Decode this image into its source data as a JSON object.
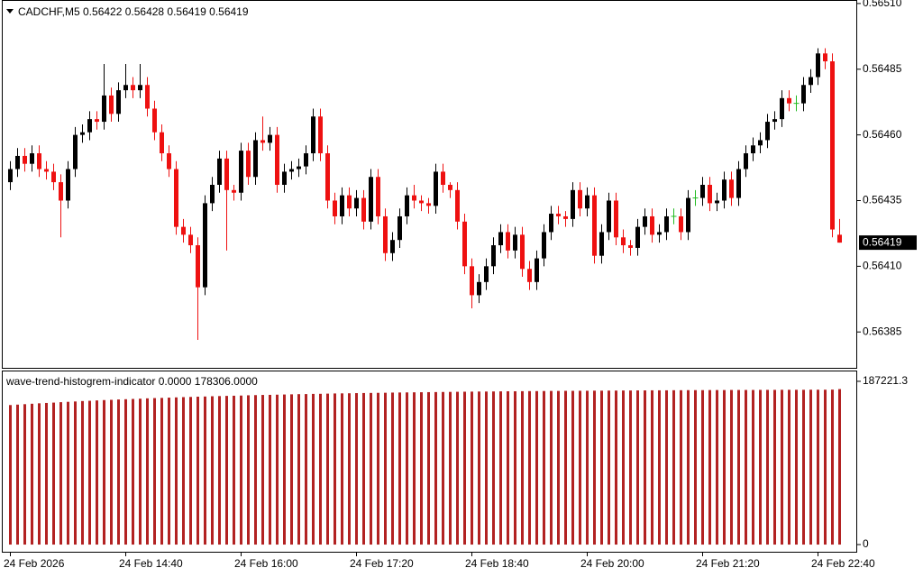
{
  "chart_data": [
    {
      "type": "candlestick",
      "title": "CADCHF,M5 0.56422 0.56428 0.56419 0.56419",
      "categories": [
        "24 Feb 2026",
        null,
        null,
        null,
        null,
        null,
        null,
        null,
        null,
        null,
        null,
        null,
        null,
        null,
        null,
        null,
        "24 Feb 14:40",
        null,
        null,
        null,
        null,
        null,
        null,
        null,
        null,
        null,
        null,
        null,
        null,
        null,
        null,
        null,
        "24 Feb 16:00",
        null,
        null,
        null,
        null,
        null,
        null,
        null,
        null,
        null,
        null,
        null,
        null,
        null,
        null,
        null,
        "24 Feb 17:20",
        null,
        null,
        null,
        null,
        null,
        null,
        null,
        null,
        null,
        null,
        null,
        null,
        null,
        null,
        null,
        "24 Feb 18:40",
        null,
        null,
        null,
        null,
        null,
        null,
        null,
        null,
        null,
        null,
        null,
        null,
        null,
        null,
        null,
        "24 Feb 20:00",
        null,
        null,
        null,
        null,
        null,
        null,
        null,
        null,
        null,
        null,
        null,
        null,
        null,
        null,
        null,
        "24 Feb 21:20",
        null,
        null,
        null,
        null,
        null,
        null,
        null,
        null,
        null,
        null,
        null,
        null,
        null,
        null,
        null,
        "24 Feb 22:40",
        null,
        null,
        null
      ],
      "open": [
        0.56442,
        0.56447,
        0.56452,
        0.56449,
        0.56453,
        0.56447,
        0.56446,
        0.56442,
        0.56435,
        0.56447,
        0.5646,
        0.56461,
        0.56466,
        0.56465,
        0.56475,
        0.56468,
        0.56477,
        0.56479,
        0.56477,
        0.56479,
        0.5647,
        0.56461,
        0.56453,
        0.56447,
        0.56425,
        0.56422,
        0.56418,
        0.56402,
        0.56434,
        0.56441,
        0.56451,
        0.56439,
        0.56438,
        0.56454,
        0.56444,
        0.56458,
        0.56457,
        0.5646,
        0.56441,
        0.56446,
        0.56447,
        0.56448,
        0.56453,
        0.56467,
        0.56453,
        0.56435,
        0.56429,
        0.56437,
        0.56432,
        0.56436,
        0.56427,
        0.56444,
        0.56429,
        0.56415,
        0.5642,
        0.56429,
        0.56437,
        0.56435,
        0.56434,
        0.56433,
        0.56446,
        0.56441,
        0.56439,
        0.56427,
        0.5641,
        0.56399,
        0.56404,
        0.5641,
        0.56418,
        0.56423,
        0.56416,
        0.56422,
        0.56409,
        0.56404,
        0.56413,
        0.56423,
        0.5643,
        0.56429,
        0.56428,
        0.56439,
        0.56432,
        0.56437,
        0.56414,
        0.56423,
        0.56435,
        0.56421,
        0.56418,
        0.56417,
        0.56425,
        0.56429,
        0.56422,
        0.56423,
        0.56429,
        0.56429,
        0.56423,
        0.56436,
        0.56436,
        0.56441,
        0.56434,
        0.56435,
        0.56443,
        0.56436,
        0.56447,
        0.56453,
        0.56456,
        0.56458,
        0.56465,
        0.56466,
        0.56474,
        0.56472,
        0.56472,
        0.56479,
        0.56482,
        0.56491,
        0.56488,
        0.56422
      ],
      "high": [
        0.5645,
        0.56455,
        0.56455,
        0.56456,
        0.56456,
        0.5645,
        0.56449,
        0.56445,
        0.5645,
        0.56463,
        0.56464,
        0.56469,
        0.56469,
        0.56487,
        0.56478,
        0.5648,
        0.56487,
        0.56482,
        0.56487,
        0.56482,
        0.56473,
        0.56464,
        0.56456,
        0.5645,
        0.56428,
        0.56425,
        0.56421,
        0.56437,
        0.56444,
        0.56454,
        0.56454,
        0.56441,
        0.56457,
        0.56457,
        0.56461,
        0.56467,
        0.56463,
        0.56463,
        0.56449,
        0.5645,
        0.56451,
        0.56456,
        0.5647,
        0.5647,
        0.56456,
        0.56438,
        0.5644,
        0.5644,
        0.56439,
        0.56439,
        0.56447,
        0.56447,
        0.56432,
        0.56423,
        0.56432,
        0.5644,
        0.56441,
        0.56437,
        0.56436,
        0.56449,
        0.56449,
        0.56442,
        0.56442,
        0.5643,
        0.56413,
        0.56407,
        0.56413,
        0.56421,
        0.56426,
        0.56426,
        0.56425,
        0.56425,
        0.56412,
        0.56416,
        0.56426,
        0.56433,
        0.56433,
        0.56431,
        0.56442,
        0.56442,
        0.5644,
        0.5644,
        0.56426,
        0.56438,
        0.56438,
        0.56424,
        0.5642,
        0.56428,
        0.56432,
        0.56432,
        0.56426,
        0.56432,
        0.56432,
        0.56432,
        0.56439,
        0.56439,
        0.56444,
        0.56444,
        0.56438,
        0.56446,
        0.56446,
        0.5645,
        0.56456,
        0.56459,
        0.56461,
        0.56468,
        0.56469,
        0.56477,
        0.56477,
        0.56475,
        0.56482,
        0.56485,
        0.56493,
        0.56493,
        0.56491,
        0.56428
      ],
      "low": [
        0.56439,
        0.56444,
        0.56446,
        0.56446,
        0.56444,
        0.56443,
        0.56439,
        0.56421,
        0.56432,
        0.56444,
        0.56457,
        0.56458,
        0.56462,
        0.56462,
        0.56465,
        0.56465,
        0.56474,
        0.56474,
        0.56474,
        0.56467,
        0.56458,
        0.5645,
        0.56444,
        0.56422,
        0.56419,
        0.56415,
        0.56382,
        0.56399,
        0.56431,
        0.56438,
        0.56416,
        0.56435,
        0.56435,
        0.56441,
        0.56441,
        0.56454,
        0.56454,
        0.56438,
        0.56438,
        0.56443,
        0.56444,
        0.56445,
        0.5645,
        0.5645,
        0.56432,
        0.56426,
        0.56426,
        0.56429,
        0.56429,
        0.56424,
        0.56424,
        0.56426,
        0.56412,
        0.56412,
        0.56417,
        0.56426,
        0.56432,
        0.56431,
        0.5643,
        0.5643,
        0.56438,
        0.56436,
        0.56424,
        0.56407,
        0.56394,
        0.56396,
        0.56401,
        0.56407,
        0.56415,
        0.56413,
        0.56413,
        0.56406,
        0.56401,
        0.56401,
        0.5641,
        0.5642,
        0.56426,
        0.56425,
        0.56425,
        0.56429,
        0.56429,
        0.56411,
        0.56411,
        0.5642,
        0.56418,
        0.56415,
        0.56414,
        0.56414,
        0.56422,
        0.56419,
        0.56419,
        0.5642,
        0.56426,
        0.5642,
        0.5642,
        0.56433,
        0.56433,
        0.56431,
        0.56431,
        0.56432,
        0.56433,
        0.56433,
        0.56444,
        0.5645,
        0.56453,
        0.56455,
        0.56462,
        0.56463,
        0.56469,
        0.56469,
        0.56469,
        0.56476,
        0.56479,
        0.56485,
        0.56421,
        0.56419
      ],
      "close": [
        0.56447,
        0.56452,
        0.56449,
        0.56453,
        0.56447,
        0.56446,
        0.56442,
        0.56435,
        0.56447,
        0.5646,
        0.56461,
        0.56466,
        0.56465,
        0.56475,
        0.56468,
        0.56477,
        0.56479,
        0.56477,
        0.56479,
        0.5647,
        0.56461,
        0.56453,
        0.56447,
        0.56425,
        0.56422,
        0.56418,
        0.56402,
        0.56434,
        0.56441,
        0.56451,
        0.56439,
        0.56438,
        0.56454,
        0.56444,
        0.56458,
        0.56457,
        0.5646,
        0.56441,
        0.56446,
        0.56447,
        0.56448,
        0.56453,
        0.56467,
        0.56453,
        0.56435,
        0.56429,
        0.56437,
        0.56432,
        0.56436,
        0.56427,
        0.56444,
        0.56429,
        0.56415,
        0.5642,
        0.56429,
        0.56437,
        0.56435,
        0.56434,
        0.56433,
        0.56446,
        0.56441,
        0.56439,
        0.56427,
        0.5641,
        0.56399,
        0.56404,
        0.5641,
        0.56418,
        0.56423,
        0.56416,
        0.56422,
        0.56409,
        0.56404,
        0.56413,
        0.56423,
        0.5643,
        0.56429,
        0.56428,
        0.56439,
        0.56432,
        0.56437,
        0.56414,
        0.56423,
        0.56435,
        0.56421,
        0.56418,
        0.56417,
        0.56425,
        0.56429,
        0.56422,
        0.56423,
        0.56429,
        0.56429,
        0.56423,
        0.56436,
        0.56436,
        0.56441,
        0.56434,
        0.56435,
        0.56443,
        0.56436,
        0.56447,
        0.56453,
        0.56456,
        0.56458,
        0.56465,
        0.56466,
        0.56474,
        0.56472,
        0.56472,
        0.56479,
        0.56482,
        0.56491,
        0.56488,
        0.56424,
        0.56419
      ],
      "up_color": "#000000",
      "down_color": "#ee1111",
      "doji_color": "#22bb22",
      "ylim": [
        0.56371,
        0.56511
      ],
      "yticks": [
        {
          "value": 0.5651,
          "label": "0.56510"
        },
        0.56485,
        {
          "value": 0.5646,
          "label": "0.56460"
        },
        0.56435,
        {
          "value": 0.5641,
          "label": "0.56410"
        },
        0.56385
      ]
    },
    {
      "type": "bar",
      "title": "wave-trend-histogrem-indicator 0.0000 178306.0000",
      "values": [
        160000,
        160500,
        161000,
        161500,
        162000,
        162400,
        162800,
        163300,
        163700,
        164100,
        164600,
        164900,
        165300,
        165700,
        166000,
        166400,
        166700,
        167000,
        167300,
        167700,
        168000,
        168200,
        168500,
        168800,
        169100,
        169300,
        169600,
        169800,
        170100,
        170300,
        170500,
        170700,
        170900,
        171200,
        171400,
        171600,
        171700,
        171900,
        172100,
        172300,
        172500,
        172600,
        172800,
        172900,
        173100,
        173300,
        173400,
        173500,
        173700,
        173800,
        173900,
        174000,
        174100,
        174300,
        174400,
        174500,
        174600,
        174700,
        174800,
        174900,
        175000,
        175100,
        175200,
        175300,
        175400,
        175500,
        175500,
        175600,
        175700,
        175800,
        175800,
        175900,
        176000,
        176000,
        176100,
        176200,
        176200,
        176300,
        176300,
        176400,
        176400,
        176500,
        176500,
        176600,
        176600,
        176700,
        176700,
        176800,
        176800,
        176900,
        176900,
        176900,
        177000,
        177000,
        177100,
        177100,
        177100,
        177200,
        177200,
        177200,
        177300,
        177300,
        177300,
        177300,
        177400,
        177400,
        177400,
        177500,
        177500,
        177500,
        177500,
        177600,
        177600,
        177600,
        177700,
        178306
      ],
      "color": "#b22222",
      "ylim": [
        -8230,
        198540
      ],
      "yticks": [
        0,
        187221.3
      ]
    }
  ]
}
